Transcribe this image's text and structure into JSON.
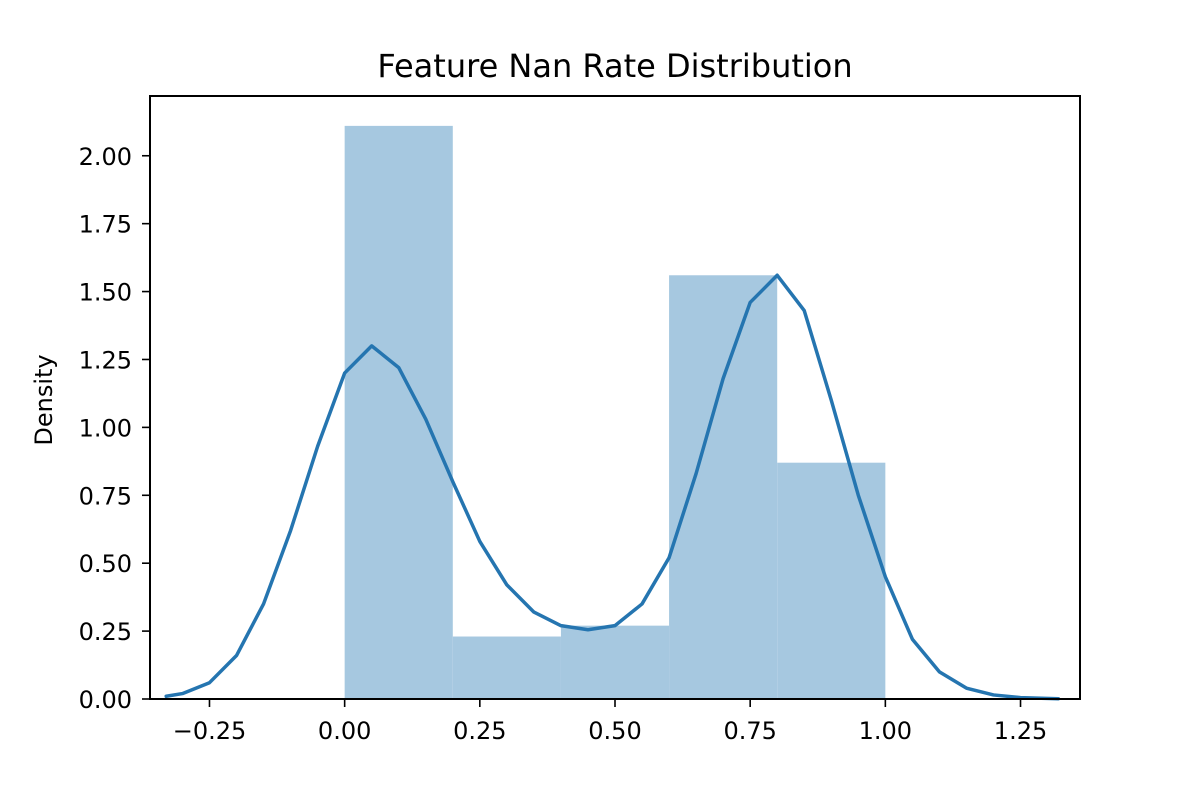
{
  "chart_data": {
    "type": "bar",
    "title": "Feature Nan Rate Distribution",
    "xlabel": "",
    "ylabel": "Density",
    "xlim": [
      -0.36,
      1.36
    ],
    "ylim": [
      0.0,
      2.22
    ],
    "xticks": [
      -0.25,
      0.0,
      0.25,
      0.5,
      0.75,
      1.0,
      1.25
    ],
    "xtick_labels": [
      "−0.25",
      "0.00",
      "0.25",
      "0.50",
      "0.75",
      "1.00",
      "1.25"
    ],
    "yticks": [
      0.0,
      0.25,
      0.5,
      0.75,
      1.0,
      1.25,
      1.5,
      1.75,
      2.0
    ],
    "ytick_labels": [
      "0.00",
      "0.25",
      "0.50",
      "0.75",
      "1.00",
      "1.25",
      "1.50",
      "1.75",
      "2.00"
    ],
    "grid": false,
    "histogram": {
      "bins": [
        {
          "x0": 0.0,
          "x1": 0.2,
          "density": 2.11
        },
        {
          "x0": 0.2,
          "x1": 0.4,
          "density": 0.23
        },
        {
          "x0": 0.4,
          "x1": 0.6,
          "density": 0.27
        },
        {
          "x0": 0.6,
          "x1": 0.8,
          "density": 1.56
        },
        {
          "x0": 0.8,
          "x1": 1.0,
          "density": 0.87
        }
      ],
      "color": "#a6c8e0"
    },
    "kde": {
      "color": "#2575b0",
      "points": [
        {
          "x": -0.33,
          "y": 0.01
        },
        {
          "x": -0.3,
          "y": 0.02
        },
        {
          "x": -0.25,
          "y": 0.06
        },
        {
          "x": -0.2,
          "y": 0.16
        },
        {
          "x": -0.15,
          "y": 0.35
        },
        {
          "x": -0.1,
          "y": 0.62
        },
        {
          "x": -0.05,
          "y": 0.93
        },
        {
          "x": 0.0,
          "y": 1.2
        },
        {
          "x": 0.05,
          "y": 1.3
        },
        {
          "x": 0.1,
          "y": 1.22
        },
        {
          "x": 0.15,
          "y": 1.03
        },
        {
          "x": 0.2,
          "y": 0.8
        },
        {
          "x": 0.25,
          "y": 0.58
        },
        {
          "x": 0.3,
          "y": 0.42
        },
        {
          "x": 0.35,
          "y": 0.32
        },
        {
          "x": 0.4,
          "y": 0.27
        },
        {
          "x": 0.45,
          "y": 0.255
        },
        {
          "x": 0.5,
          "y": 0.27
        },
        {
          "x": 0.55,
          "y": 0.35
        },
        {
          "x": 0.6,
          "y": 0.52
        },
        {
          "x": 0.65,
          "y": 0.83
        },
        {
          "x": 0.7,
          "y": 1.18
        },
        {
          "x": 0.75,
          "y": 1.46
        },
        {
          "x": 0.8,
          "y": 1.56
        },
        {
          "x": 0.85,
          "y": 1.43
        },
        {
          "x": 0.9,
          "y": 1.1
        },
        {
          "x": 0.95,
          "y": 0.75
        },
        {
          "x": 1.0,
          "y": 0.45
        },
        {
          "x": 1.05,
          "y": 0.22
        },
        {
          "x": 1.1,
          "y": 0.1
        },
        {
          "x": 1.15,
          "y": 0.04
        },
        {
          "x": 1.2,
          "y": 0.015
        },
        {
          "x": 1.25,
          "y": 0.005
        },
        {
          "x": 1.32,
          "y": 0.001
        }
      ]
    }
  }
}
